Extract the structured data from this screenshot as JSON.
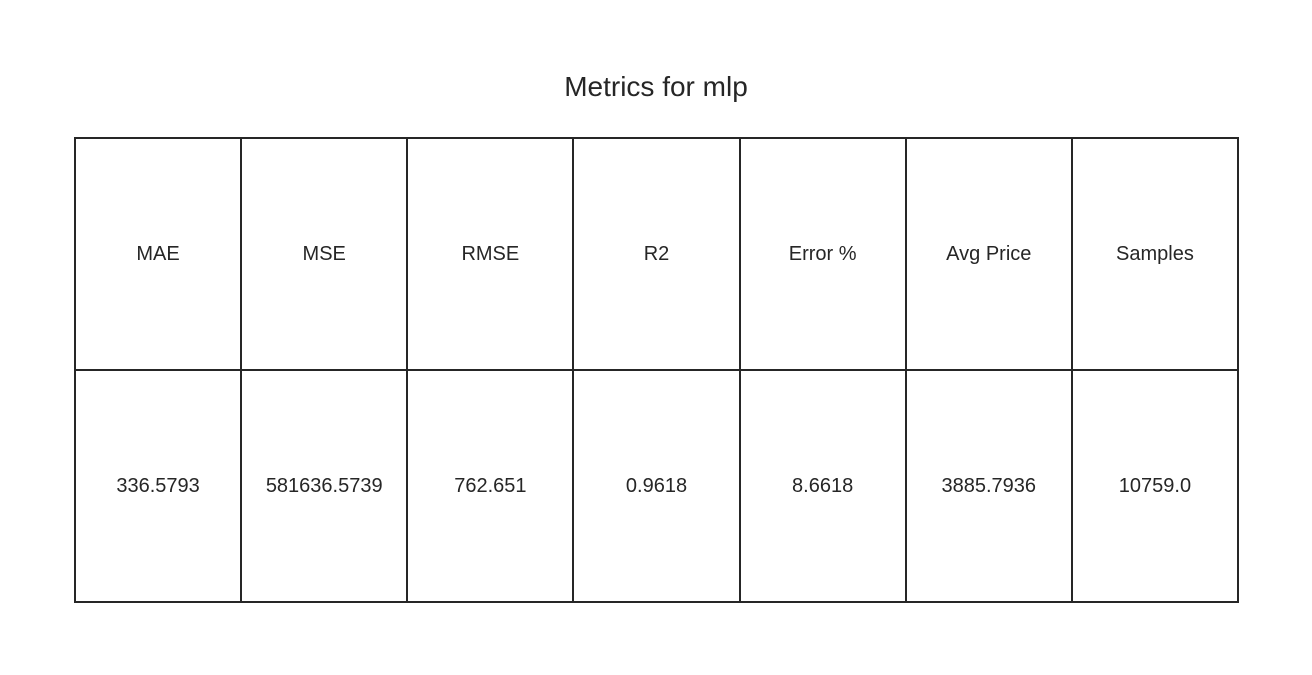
{
  "chart_data": {
    "type": "table",
    "title": "Metrics for mlp",
    "columns": [
      "MAE",
      "MSE",
      "RMSE",
      "R2",
      "Error %",
      "Avg Price",
      "Samples"
    ],
    "rows": [
      [
        "336.5793",
        "581636.5739",
        "762.651",
        "0.9618",
        "8.6618",
        "3885.7936",
        "10759.0"
      ]
    ]
  },
  "colors": {
    "text": "#262626",
    "grid": "#262626",
    "background": "#ffffff"
  }
}
